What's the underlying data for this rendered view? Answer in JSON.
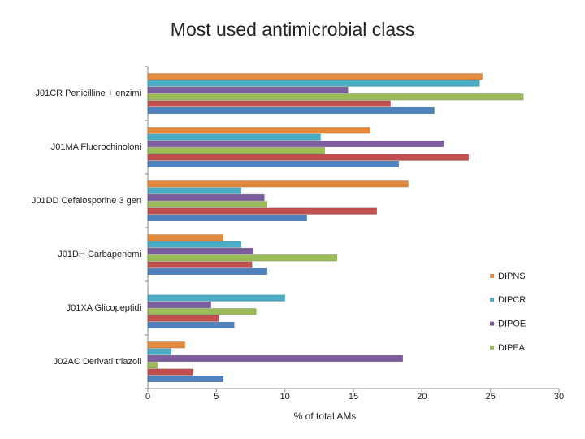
{
  "chart_data": {
    "type": "hbar",
    "title": "Most used antimicrobial class",
    "x_label": "% of total AMs",
    "categories": [
      "J01CR Penicilline + enzimi",
      "J01MA Fluorochinoloni",
      "J01DD Cefalosporine 3 gen",
      "J01DH Carbapenemi",
      "J01XA Glicopeptidi",
      "J02AC Derivati triazoli"
    ],
    "series": [
      {
        "name": "DIPNS",
        "color": "#e48a3d",
        "values": [
          24.4,
          16.2,
          19.0,
          5.5,
          null,
          2.7
        ]
      },
      {
        "name": "DIPCR",
        "color": "#4bacc6",
        "values": [
          24.2,
          12.6,
          6.8,
          6.8,
          10.0,
          1.7
        ]
      },
      {
        "name": "DIPOE",
        "color": "#7c5e9e",
        "values": [
          14.6,
          21.6,
          8.5,
          7.7,
          4.6,
          18.6
        ]
      },
      {
        "name": "DIPEA",
        "color": "#9bbb59",
        "values": [
          27.4,
          12.9,
          8.7,
          13.8,
          7.9,
          0.7
        ]
      },
      {
        "color": "#c0504d",
        "values": [
          17.7,
          23.4,
          16.7,
          7.6,
          5.2,
          3.3
        ]
      },
      {
        "color": "#4f81bd",
        "values": [
          20.9,
          18.3,
          11.6,
          8.7,
          6.3,
          5.5
        ]
      }
    ],
    "xlim": [
      0,
      30
    ],
    "xticks": [
      0,
      5,
      10,
      15,
      20,
      25,
      30
    ],
    "grid": false
  }
}
